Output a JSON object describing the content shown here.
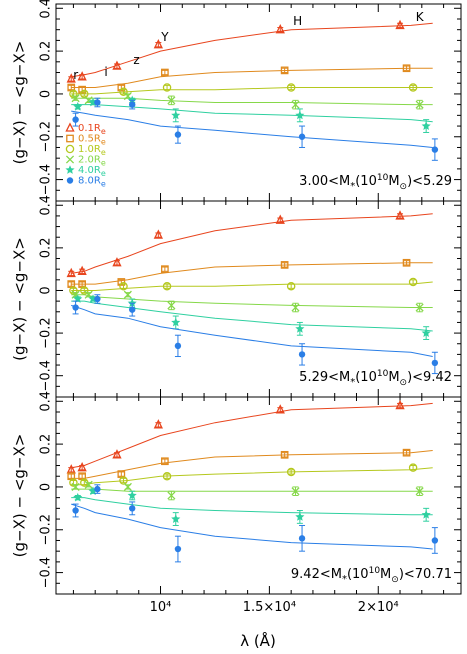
{
  "chart_data": {
    "type": "line",
    "layout": "3 vertically stacked panels sharing the x axis",
    "xlabel": "λ (Å)",
    "ylabel": "(g−X) − <g−X>",
    "x_tick_labels": [
      "10⁴",
      "1.5×10⁴",
      "2×10⁴"
    ],
    "xlim": [
      5200,
      23800
    ],
    "ylim": [
      -0.5,
      0.42
    ],
    "y_ticks": [
      0.4,
      0.2,
      0,
      -0.2,
      -0.4
    ],
    "y_tick_labels": [
      "0.4",
      "0.2",
      "0",
      "−0.2",
      "−0.4"
    ],
    "bands": [
      {
        "name": "r",
        "wavelength": 6200
      },
      {
        "name": "i",
        "wavelength": 7500
      },
      {
        "name": "z",
        "wavelength": 8900
      },
      {
        "name": "Y",
        "wavelength": 10200
      },
      {
        "name": "H",
        "wavelength": 16300
      },
      {
        "name": "K",
        "wavelength": 21900
      }
    ],
    "point_wavelengths": [
      5900,
      6300,
      7000,
      8300,
      8700,
      10100,
      10600,
      16000,
      16500,
      21500,
      22200
    ],
    "model_line_wavelengths": [
      5900,
      6500,
      7000,
      8500,
      10000,
      12500,
      16000,
      21500,
      22500
    ],
    "legend": [
      {
        "label": "0.1R",
        "subscript": "e",
        "marker": "triangle",
        "color": "#e8451e"
      },
      {
        "label": "0.5R",
        "subscript": "e",
        "marker": "square",
        "color": "#e08a1e"
      },
      {
        "label": "1.0R",
        "subscript": "e",
        "marker": "circle",
        "color": "#b5c81e"
      },
      {
        "label": "2.0R",
        "subscript": "e",
        "marker": "cross",
        "color": "#86d84a"
      },
      {
        "label": "4.0R",
        "subscript": "e",
        "marker": "star",
        "color": "#2fd0a0"
      },
      {
        "label": "8.0R",
        "subscript": "e",
        "marker": "dot",
        "color": "#2a7ee6"
      }
    ],
    "panels": [
      {
        "annotation": "3.00<M<sub>*</sub>(10<sup>10</sup>M<sub>⊙</sub>)<5.29",
        "annotation_prefix": "3.00<M",
        "annotation_mid": "(10",
        "annotation_exp": "10",
        "annotation_m": "M",
        "annotation_suffix": ")<5.29",
        "series": [
          {
            "name": "0.1Re",
            "x": [
              5900,
              6400,
              8000,
              9900,
              15500,
              21000
            ],
            "y": [
              0.07,
              0.08,
              0.13,
              0.23,
              0.3,
              0.32
            ],
            "err": [
              0.01,
              0.01,
              0.01,
              0.01,
              0.01,
              0.01
            ],
            "model": [
              0.08,
              0.09,
              0.1,
              0.15,
              0.2,
              0.25,
              0.3,
              0.32,
              0.33
            ]
          },
          {
            "name": "0.5Re",
            "x": [
              5900,
              6400,
              8200,
              10200,
              15700,
              21300
            ],
            "y": [
              0.03,
              0.02,
              0.03,
              0.1,
              0.11,
              0.12
            ],
            "err": [
              0.01,
              0.01,
              0.01,
              0.01,
              0.01,
              0.01
            ],
            "model": [
              0.03,
              0.03,
              0.03,
              0.05,
              0.08,
              0.1,
              0.11,
              0.12,
              0.12
            ]
          },
          {
            "name": "1.0Re",
            "x": [
              6000,
              6500,
              8300,
              10300,
              16000,
              21600
            ],
            "y": [
              0.0,
              0.0,
              0.01,
              0.03,
              0.03,
              0.03
            ],
            "err": [
              0.01,
              0.01,
              0.01,
              0.01,
              0.01,
              0.01
            ],
            "model": [
              0.0,
              0.0,
              0.0,
              0.01,
              0.02,
              0.02,
              0.03,
              0.03,
              0.03
            ]
          },
          {
            "name": "2.0Re",
            "x": [
              6100,
              6700,
              8500,
              10500,
              16200,
              21900
            ],
            "y": [
              -0.02,
              -0.03,
              -0.01,
              -0.03,
              -0.05,
              -0.05
            ],
            "err": [
              0.01,
              0.01,
              0.01,
              0.02,
              0.02,
              0.02
            ],
            "model": [
              -0.02,
              -0.02,
              -0.02,
              -0.02,
              -0.03,
              -0.04,
              -0.04,
              -0.05,
              -0.05
            ]
          },
          {
            "name": "4.0Re",
            "x": [
              6200,
              6900,
              8700,
              10700,
              16400,
              22200
            ],
            "y": [
              -0.06,
              -0.04,
              -0.03,
              -0.1,
              -0.1,
              -0.15
            ],
            "err": [
              0.01,
              0.01,
              0.01,
              0.03,
              0.03,
              0.03
            ],
            "model": [
              -0.05,
              -0.05,
              -0.05,
              -0.06,
              -0.07,
              -0.09,
              -0.1,
              -0.12,
              -0.13
            ]
          },
          {
            "name": "8.0Re",
            "x": [
              6100,
              7100,
              8700,
              10800,
              16500,
              22600
            ],
            "y": [
              -0.12,
              -0.04,
              -0.05,
              -0.19,
              -0.2,
              -0.26
            ],
            "err": [
              0.03,
              0.02,
              0.02,
              0.04,
              0.05,
              0.05
            ],
            "model": [
              -0.08,
              -0.09,
              -0.1,
              -0.12,
              -0.15,
              -0.17,
              -0.2,
              -0.24,
              -0.25
            ]
          }
        ]
      },
      {
        "annotation_prefix": "5.29<M",
        "annotation_mid": "(10",
        "annotation_exp": "10",
        "annotation_m": "M",
        "annotation_suffix": ")<9.42",
        "series": [
          {
            "name": "0.1Re",
            "x": [
              5900,
              6400,
              8000,
              9900,
              15500,
              21000
            ],
            "y": [
              0.08,
              0.09,
              0.13,
              0.26,
              0.33,
              0.35
            ],
            "err": [
              0.01,
              0.01,
              0.01,
              0.01,
              0.01,
              0.01
            ],
            "model": [
              0.08,
              0.09,
              0.11,
              0.16,
              0.22,
              0.28,
              0.33,
              0.35,
              0.36
            ]
          },
          {
            "name": "0.5Re",
            "x": [
              5900,
              6400,
              8200,
              10200,
              15700,
              21300
            ],
            "y": [
              0.03,
              0.03,
              0.04,
              0.1,
              0.12,
              0.13
            ],
            "err": [
              0.01,
              0.01,
              0.01,
              0.01,
              0.01,
              0.01
            ],
            "model": [
              0.03,
              0.03,
              0.03,
              0.05,
              0.08,
              0.11,
              0.12,
              0.13,
              0.13
            ]
          },
          {
            "name": "1.0Re",
            "x": [
              6000,
              6500,
              8300,
              10300,
              16000,
              21600
            ],
            "y": [
              0.0,
              0.0,
              0.02,
              0.02,
              0.02,
              0.04
            ],
            "err": [
              0.01,
              0.01,
              0.01,
              0.01,
              0.01,
              0.01
            ],
            "model": [
              0.0,
              0.0,
              0.0,
              0.01,
              0.02,
              0.02,
              0.03,
              0.03,
              0.04
            ]
          },
          {
            "name": "2.0Re",
            "x": [
              6100,
              6700,
              8500,
              10500,
              16200,
              21900
            ],
            "y": [
              -0.02,
              -0.02,
              -0.02,
              -0.07,
              -0.08,
              -0.08
            ],
            "err": [
              0.01,
              0.01,
              0.01,
              0.02,
              0.02,
              0.02
            ],
            "model": [
              -0.02,
              -0.02,
              -0.03,
              -0.04,
              -0.05,
              -0.06,
              -0.07,
              -0.08,
              -0.08
            ]
          },
          {
            "name": "4.0Re",
            "x": [
              6200,
              6900,
              8700,
              10700,
              16400,
              22200
            ],
            "y": [
              -0.04,
              -0.04,
              -0.06,
              -0.15,
              -0.18,
              -0.2
            ],
            "err": [
              0.01,
              0.01,
              0.02,
              0.03,
              0.03,
              0.03
            ],
            "model": [
              -0.05,
              -0.05,
              -0.06,
              -0.08,
              -0.1,
              -0.13,
              -0.16,
              -0.18,
              -0.19
            ]
          },
          {
            "name": "8.0Re",
            "x": [
              6100,
              7100,
              8700,
              10800,
              16500,
              22600
            ],
            "y": [
              -0.08,
              -0.04,
              -0.09,
              -0.26,
              -0.3,
              -0.34
            ],
            "err": [
              0.03,
              0.02,
              0.03,
              0.05,
              0.05,
              0.05
            ],
            "model": [
              -0.07,
              -0.09,
              -0.11,
              -0.13,
              -0.17,
              -0.21,
              -0.26,
              -0.29,
              -0.31
            ]
          }
        ]
      },
      {
        "annotation_prefix": "9.42<M",
        "annotation_mid": "(10",
        "annotation_exp": "10",
        "annotation_m": "M",
        "annotation_suffix": ")<70.71",
        "series": [
          {
            "name": "0.1Re",
            "x": [
              5900,
              6400,
              8000,
              9900,
              15500,
              21000
            ],
            "y": [
              0.08,
              0.09,
              0.15,
              0.29,
              0.36,
              0.38
            ],
            "err": [
              0.01,
              0.01,
              0.01,
              0.01,
              0.01,
              0.01
            ],
            "model": [
              0.09,
              0.1,
              0.12,
              0.18,
              0.24,
              0.3,
              0.36,
              0.38,
              0.39
            ]
          },
          {
            "name": "0.5Re",
            "x": [
              5900,
              6400,
              8200,
              10200,
              15700,
              21300
            ],
            "y": [
              0.05,
              0.05,
              0.06,
              0.12,
              0.15,
              0.16
            ],
            "err": [
              0.01,
              0.01,
              0.01,
              0.01,
              0.01,
              0.01
            ],
            "model": [
              0.04,
              0.04,
              0.05,
              0.08,
              0.11,
              0.14,
              0.15,
              0.16,
              0.17
            ]
          },
          {
            "name": "1.0Re",
            "x": [
              6000,
              6500,
              8300,
              10300,
              16000,
              21600
            ],
            "y": [
              0.02,
              0.02,
              0.03,
              0.05,
              0.07,
              0.09
            ],
            "err": [
              0.01,
              0.01,
              0.01,
              0.01,
              0.01,
              0.01
            ],
            "model": [
              0.01,
              0.01,
              0.02,
              0.03,
              0.05,
              0.06,
              0.07,
              0.08,
              0.09
            ]
          },
          {
            "name": "2.0Re",
            "x": [
              6100,
              6700,
              8500,
              10500,
              16200,
              21900
            ],
            "y": [
              0.0,
              0.01,
              0.0,
              -0.04,
              -0.02,
              -0.02
            ],
            "err": [
              0.01,
              0.01,
              0.01,
              0.02,
              0.02,
              0.02
            ],
            "model": [
              -0.01,
              -0.01,
              -0.01,
              -0.02,
              -0.02,
              -0.02,
              -0.02,
              -0.02,
              -0.02
            ]
          },
          {
            "name": "4.0Re",
            "x": [
              6200,
              6900,
              8700,
              10700,
              16400,
              22200
            ],
            "y": [
              -0.05,
              -0.02,
              -0.04,
              -0.15,
              -0.14,
              -0.13
            ],
            "err": [
              0.01,
              0.01,
              0.02,
              0.03,
              0.03,
              0.03
            ],
            "model": [
              -0.05,
              -0.05,
              -0.06,
              -0.08,
              -0.1,
              -0.11,
              -0.12,
              -0.13,
              -0.13
            ]
          },
          {
            "name": "8.0Re",
            "x": [
              6100,
              7100,
              8700,
              10800,
              16500,
              22600
            ],
            "y": [
              -0.11,
              -0.01,
              -0.1,
              -0.29,
              -0.24,
              -0.25
            ],
            "err": [
              0.03,
              0.02,
              0.03,
              0.06,
              0.06,
              0.06
            ],
            "model": [
              -0.08,
              -0.1,
              -0.12,
              -0.15,
              -0.19,
              -0.23,
              -0.26,
              -0.28,
              -0.29
            ]
          }
        ]
      }
    ]
  }
}
